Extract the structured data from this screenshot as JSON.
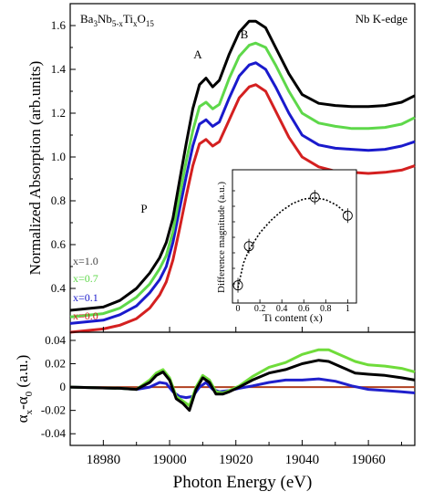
{
  "chart_data": [
    {
      "type": "line",
      "title": "",
      "annotations": {
        "compound": {
          "prefix": "Ba",
          "s1": "3",
          "mid1": "Nb",
          "s2": "5-x",
          "mid2": "Ti",
          "s3": "x",
          "mid3": "O",
          "s4": "15"
        },
        "edge": "Nb K-edge",
        "peak_A": "A",
        "peak_B": "B",
        "feature_P": "P"
      },
      "xlabel": "Photon Energy (eV)",
      "ylabel": "Normalized Absorption (arb.units)",
      "xlim": [
        18970,
        19074
      ],
      "ylim": [
        0.2,
        1.7
      ],
      "yticks": [
        "0.4",
        "0.6",
        "0.8",
        "1.0",
        "1.2",
        "1.4",
        "1.6"
      ],
      "series": [
        {
          "name": "x=0.0",
          "color": "#d42020",
          "curve_color": "#d42020",
          "x": [
            18970,
            18980,
            18985,
            18990,
            18994,
            18997,
            18999,
            19001,
            19003,
            19005,
            19007,
            19009,
            19011,
            19013,
            19015,
            19018,
            19021,
            19024,
            19026,
            19029,
            19032,
            19036,
            19040,
            19045,
            19050,
            19055,
            19060,
            19065,
            19070,
            19074
          ],
          "y": [
            0.2,
            0.215,
            0.232,
            0.262,
            0.31,
            0.37,
            0.43,
            0.53,
            0.67,
            0.82,
            0.96,
            1.06,
            1.08,
            1.05,
            1.07,
            1.17,
            1.27,
            1.32,
            1.33,
            1.3,
            1.21,
            1.09,
            1.0,
            0.955,
            0.935,
            0.93,
            0.925,
            0.93,
            0.94,
            0.96
          ]
        },
        {
          "name": "x=0.1",
          "color": "#1a1acc",
          "curve_color": "#1a1acc",
          "x": [
            18970,
            18980,
            18985,
            18990,
            18994,
            18997,
            18999,
            19001,
            19003,
            19005,
            19007,
            19009,
            19011,
            19013,
            19015,
            19018,
            19021,
            19024,
            19026,
            19029,
            19032,
            19036,
            19040,
            19045,
            19050,
            19055,
            19060,
            19065,
            19070,
            19074
          ],
          "y": [
            0.24,
            0.255,
            0.28,
            0.32,
            0.38,
            0.44,
            0.5,
            0.61,
            0.76,
            0.91,
            1.05,
            1.15,
            1.17,
            1.14,
            1.16,
            1.27,
            1.37,
            1.42,
            1.43,
            1.4,
            1.32,
            1.2,
            1.1,
            1.055,
            1.04,
            1.035,
            1.03,
            1.035,
            1.05,
            1.07
          ]
        },
        {
          "name": "x=0.7",
          "color": "#5ed84a",
          "curve_color": "#5ed84a",
          "x": [
            18970,
            18980,
            18985,
            18990,
            18994,
            18997,
            18999,
            19001,
            19003,
            19005,
            19007,
            19009,
            19011,
            19013,
            19015,
            19018,
            19021,
            19024,
            19026,
            19029,
            19032,
            19036,
            19040,
            19045,
            19050,
            19055,
            19060,
            19065,
            19070,
            19074
          ],
          "y": [
            0.27,
            0.285,
            0.31,
            0.36,
            0.42,
            0.49,
            0.55,
            0.66,
            0.82,
            0.98,
            1.12,
            1.23,
            1.25,
            1.22,
            1.24,
            1.36,
            1.46,
            1.51,
            1.52,
            1.5,
            1.42,
            1.3,
            1.2,
            1.155,
            1.14,
            1.13,
            1.13,
            1.135,
            1.15,
            1.18
          ]
        },
        {
          "name": "x=1.0",
          "color": "#000000",
          "curve_color": "#000000",
          "x": [
            18970,
            18980,
            18985,
            18990,
            18994,
            18997,
            18999,
            19001,
            19003,
            19005,
            19007,
            19009,
            19011,
            19013,
            19015,
            19018,
            19021,
            19024,
            19026,
            19029,
            19032,
            19036,
            19040,
            19045,
            19050,
            19055,
            19060,
            19065,
            19070,
            19074
          ],
          "y": [
            0.3,
            0.315,
            0.345,
            0.4,
            0.47,
            0.54,
            0.61,
            0.72,
            0.89,
            1.06,
            1.22,
            1.33,
            1.36,
            1.32,
            1.35,
            1.47,
            1.57,
            1.62,
            1.62,
            1.59,
            1.5,
            1.38,
            1.285,
            1.245,
            1.235,
            1.23,
            1.23,
            1.235,
            1.25,
            1.28
          ]
        }
      ]
    },
    {
      "type": "scatter",
      "xlabel": "Ti content (x)",
      "ylabel": "Difference magnitude (a.u.)",
      "xlim": [
        -0.05,
        1.08
      ],
      "xticks": [
        "0",
        "0.2",
        "0.4",
        "0.6",
        "0.8",
        "1"
      ],
      "points": [
        {
          "x": 0.0,
          "y": 0.1
        },
        {
          "x": 0.1,
          "y": 0.42
        },
        {
          "x": 0.7,
          "y": 0.82
        },
        {
          "x": 1.0,
          "y": 0.67
        }
      ],
      "errorbar": 0.06,
      "fit": [
        [
          0.0,
          0.08
        ],
        [
          0.05,
          0.28
        ],
        [
          0.1,
          0.39
        ],
        [
          0.2,
          0.53
        ],
        [
          0.3,
          0.63
        ],
        [
          0.4,
          0.71
        ],
        [
          0.5,
          0.77
        ],
        [
          0.6,
          0.805
        ],
        [
          0.7,
          0.815
        ],
        [
          0.8,
          0.8
        ],
        [
          0.9,
          0.755
        ],
        [
          1.0,
          0.68
        ]
      ],
      "ylim": [
        0,
        1
      ]
    },
    {
      "type": "line",
      "xlabel": "Photon Energy (eV)",
      "ylabel": {
        "main": "α",
        "sub1": "x",
        "mid": "-α",
        "sub2": "0",
        "unit": " (a.u.)"
      },
      "xlim": [
        18970,
        19074
      ],
      "ylim": [
        -0.05,
        0.047
      ],
      "xticks": [
        "18980",
        "19000",
        "19020",
        "19040",
        "19060"
      ],
      "yticks": [
        "-0.04",
        "-0.02",
        "0",
        "0.02",
        "0.04"
      ],
      "series": [
        {
          "name": "x=0.0",
          "color": "#b04020",
          "x": [
            18970,
            19074
          ],
          "y": [
            0,
            0
          ]
        },
        {
          "name": "x=0.1",
          "color": "#2020cc",
          "x": [
            18970,
            18985,
            18990,
            18994,
            18997,
            18999,
            19001,
            19003,
            19005,
            19007,
            19009,
            19011,
            19013,
            19015,
            19018,
            19021,
            19025,
            19030,
            19035,
            19040,
            19045,
            19050,
            19055,
            19060,
            19065,
            19070,
            19074
          ],
          "y": [
            0,
            -0.001,
            -0.002,
            0,
            0.004,
            0.003,
            -0.004,
            -0.008,
            -0.009,
            -0.008,
            0,
            0.004,
            -0.002,
            -0.004,
            -0.003,
            -0.001,
            0.001,
            0.004,
            0.006,
            0.006,
            0.007,
            0.005,
            0.001,
            -0.002,
            -0.003,
            -0.004,
            -0.005
          ]
        },
        {
          "name": "x=0.7",
          "color": "#6fdc3a",
          "x": [
            18970,
            18985,
            18990,
            18994,
            18996,
            18998,
            19000,
            19002,
            19004,
            19006,
            19008,
            19010,
            19012,
            19014,
            19016,
            19018,
            19021,
            19025,
            19030,
            19035,
            19040,
            19045,
            19048,
            19052,
            19056,
            19060,
            19065,
            19070,
            19074
          ],
          "y": [
            0,
            -0.001,
            -0.002,
            0.006,
            0.012,
            0.015,
            0.008,
            -0.008,
            -0.012,
            -0.016,
            0.0,
            0.01,
            0.006,
            -0.004,
            -0.005,
            -0.003,
            0.001,
            0.009,
            0.017,
            0.021,
            0.028,
            0.032,
            0.032,
            0.027,
            0.022,
            0.019,
            0.018,
            0.016,
            0.013
          ]
        },
        {
          "name": "x=1.0",
          "color": "#000000",
          "x": [
            18970,
            18985,
            18990,
            18994,
            18996,
            18998,
            19000,
            19002,
            19004,
            19006,
            19008,
            19010,
            19012,
            19014,
            19016,
            19018,
            19021,
            19025,
            19030,
            19035,
            19040,
            19045,
            19048,
            19052,
            19056,
            19060,
            19065,
            19070,
            19074
          ],
          "y": [
            0,
            -0.001,
            -0.002,
            0.004,
            0.01,
            0.013,
            0.006,
            -0.01,
            -0.014,
            -0.02,
            -0.002,
            0.008,
            0.004,
            -0.006,
            -0.006,
            -0.004,
            0.0,
            0.006,
            0.012,
            0.015,
            0.02,
            0.023,
            0.022,
            0.017,
            0.012,
            0.011,
            0.01,
            0.008,
            0.006
          ]
        }
      ]
    }
  ]
}
